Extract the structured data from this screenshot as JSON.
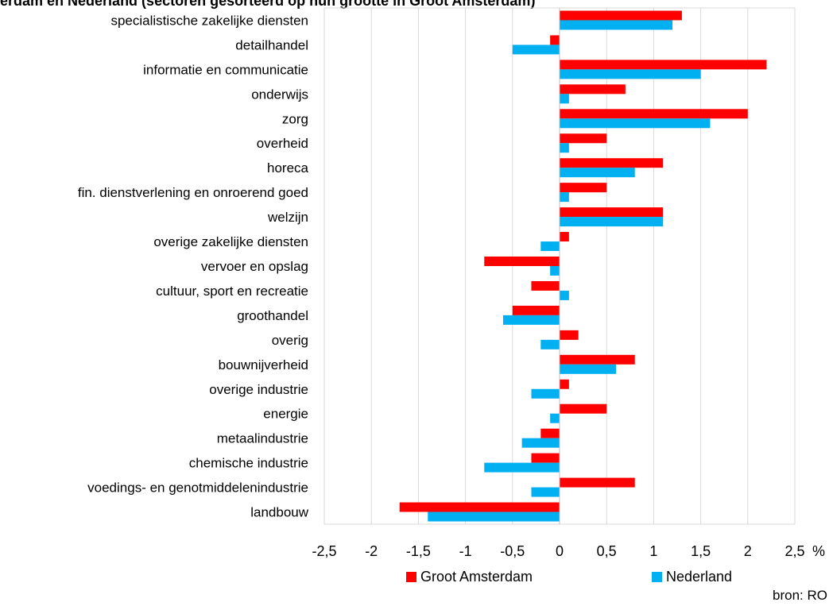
{
  "title": "erdam en Nederland (sectoren gesorteerd op hun grootte in Groot Amsterdam)",
  "source": "bron: RO",
  "colors": {
    "groot_amsterdam": "#ff0000",
    "nederland": "#00b0f0",
    "grid": "#d9d9d9"
  },
  "chart_data": {
    "type": "bar",
    "orientation": "horizontal",
    "categories": [
      "specialistische zakelijke diensten",
      "detailhandel",
      "informatie en communicatie",
      "onderwijs",
      "zorg",
      "overheid",
      "horeca",
      "fin. dienstverlening en onroerend goed",
      "welzijn",
      "overige zakelijke diensten",
      "vervoer en opslag",
      "cultuur, sport en recreatie",
      "groothandel",
      "overig",
      "bouwnijverheid",
      "overige industrie",
      "energie",
      "metaalindustrie",
      "chemische industrie",
      "voedings- en genotmiddelenindustrie",
      "landbouw"
    ],
    "series": [
      {
        "name": "Groot Amsterdam",
        "color": "#ff0000",
        "values": [
          1.3,
          -0.1,
          2.2,
          0.7,
          2.0,
          0.5,
          1.1,
          0.5,
          1.1,
          0.1,
          -0.8,
          -0.3,
          -0.5,
          0.2,
          0.8,
          0.1,
          0.5,
          -0.2,
          -0.3,
          0.8,
          -1.7
        ]
      },
      {
        "name": "Nederland",
        "color": "#00b0f0",
        "values": [
          1.2,
          -0.5,
          1.5,
          0.1,
          1.6,
          0.1,
          0.8,
          0.1,
          1.1,
          -0.2,
          -0.1,
          0.1,
          -0.6,
          -0.2,
          0.6,
          -0.3,
          -0.1,
          -0.4,
          -0.8,
          -0.3,
          -1.4
        ]
      }
    ],
    "xlim": [
      -2.5,
      2.5
    ],
    "xticks": [
      "-2,5",
      "-2",
      "-1,5",
      "-1",
      "-0,5",
      "0",
      "0,5",
      "1",
      "1,5",
      "2",
      "2,5"
    ],
    "xunit": "%",
    "grid": true,
    "legend": "bottom"
  }
}
